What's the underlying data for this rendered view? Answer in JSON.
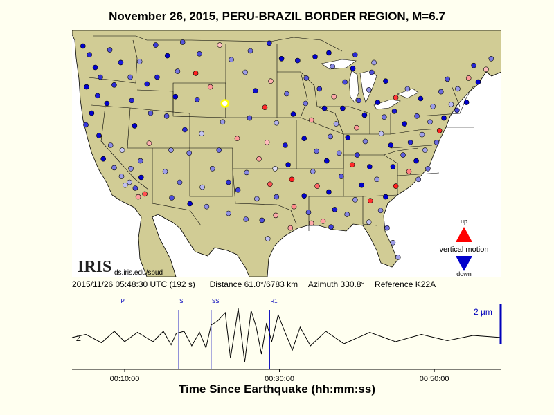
{
  "title": "November 26, 2015, PERU-BRAZIL BORDER REGION, M=6.7",
  "iris": {
    "logo": "IRIS",
    "url": "ds.iris.edu/spud"
  },
  "legend": {
    "up": "up",
    "motion": "vertical motion",
    "down": "down",
    "up_color": "#ff0000",
    "down_color": "#0000cc"
  },
  "info": {
    "time": "2015/11/26 05:48:30 UTC (192 s)",
    "distance_label": "Distance",
    "distance": "61.0°/6783 km",
    "azimuth_label": "Azimuth",
    "azimuth": "330.8°",
    "reference_label": "Reference",
    "reference": "K22A"
  },
  "colors": {
    "land": "#d1cc95",
    "water": "#ffffff",
    "border": "#000000",
    "trace": "#000000",
    "phase": "#0000bb"
  },
  "chart_data": {
    "type": "line",
    "title": "",
    "xlabel": "Time Since Earthquake (hh:mm:ss)",
    "ylabel": "",
    "channel": "Z",
    "scale_label": "2 µm",
    "xlim_seconds": [
      192,
      3520
    ],
    "x_ticks": [
      {
        "t": 600,
        "label": "00:10:00"
      },
      {
        "t": 1800,
        "label": "00:30:00"
      },
      {
        "t": 3000,
        "label": "00:50:00"
      }
    ],
    "phases": [
      {
        "name": "P",
        "t": 565
      },
      {
        "name": "S",
        "t": 1019
      },
      {
        "name": "SS",
        "t": 1270
      },
      {
        "name": "R1",
        "t": 1724
      }
    ],
    "trace_amplitude": {
      "t": [
        192,
        300,
        420,
        520,
        600,
        700,
        820,
        900,
        960,
        1000,
        1060,
        1120,
        1180,
        1230,
        1270,
        1320,
        1380,
        1420,
        1480,
        1530,
        1580,
        1620,
        1660,
        1700,
        1740,
        1790,
        1840,
        1900,
        1960,
        2040,
        2160,
        2300,
        2500,
        2700,
        2900,
        3100,
        3300,
        3520
      ],
      "y": [
        0.0,
        0.15,
        -0.25,
        0.3,
        -0.2,
        0.25,
        -0.2,
        0.3,
        -0.35,
        0.2,
        0.3,
        -0.4,
        0.25,
        -0.5,
        0.6,
        0.8,
        1.2,
        -1.0,
        1.4,
        -1.2,
        1.3,
        0.5,
        -0.8,
        0.7,
        -0.2,
        1.1,
        0.3,
        -0.6,
        0.5,
        -0.4,
        0.3,
        -0.3,
        0.25,
        -0.2,
        0.15,
        -0.15,
        0.1,
        0.0
      ]
    }
  },
  "stations": [
    {
      "lon": -124.0,
      "lat": 48.2,
      "c": "#0000cc"
    },
    {
      "lon": -123.1,
      "lat": 47.3,
      "c": "#2626d9"
    },
    {
      "lon": -122.3,
      "lat": 46.0,
      "c": "#0000cc"
    },
    {
      "lon": -121.6,
      "lat": 45.0,
      "c": "#3333cc"
    },
    {
      "lon": -123.5,
      "lat": 44.0,
      "c": "#0000cc"
    },
    {
      "lon": -122.0,
      "lat": 43.1,
      "c": "#1a1ad9"
    },
    {
      "lon": -120.3,
      "lat": 47.8,
      "c": "#5050d9"
    },
    {
      "lon": -118.8,
      "lat": 46.5,
      "c": "#1a1ae0"
    },
    {
      "lon": -117.5,
      "lat": 45.0,
      "c": "#6a6ae0"
    },
    {
      "lon": -119.7,
      "lat": 44.2,
      "c": "#2a2ad6"
    },
    {
      "lon": -120.7,
      "lat": 42.3,
      "c": "#0000cc"
    },
    {
      "lon": -122.8,
      "lat": 41.3,
      "c": "#0000cc"
    },
    {
      "lon": -123.6,
      "lat": 40.1,
      "c": "#3636d6"
    },
    {
      "lon": -121.8,
      "lat": 39.0,
      "c": "#0a0ad4"
    },
    {
      "lon": -120.2,
      "lat": 38.0,
      "c": "#8a8ae6"
    },
    {
      "lon": -121.2,
      "lat": 36.6,
      "c": "#0000cc"
    },
    {
      "lon": -119.7,
      "lat": 35.7,
      "c": "#7a7ae0"
    },
    {
      "lon": -118.7,
      "lat": 34.8,
      "c": "#9e9ee8"
    },
    {
      "lon": -117.6,
      "lat": 34.2,
      "c": "#b2b2ee"
    },
    {
      "lon": -116.8,
      "lat": 33.6,
      "c": "#4a4ad9"
    },
    {
      "lon": -118.2,
      "lat": 33.9,
      "c": "#c0c0f0"
    },
    {
      "lon": -116.0,
      "lat": 34.7,
      "c": "#0000cc"
    },
    {
      "lon": -115.5,
      "lat": 33.0,
      "c": "#ff5050"
    },
    {
      "lon": -116.4,
      "lat": 32.7,
      "c": "#ffa0a0"
    },
    {
      "lon": -117.4,
      "lat": 35.6,
      "c": "#9090e6"
    },
    {
      "lon": -116.1,
      "lat": 36.4,
      "c": "#6868dc"
    },
    {
      "lon": -118.6,
      "lat": 37.5,
      "c": "#c8c8f2"
    },
    {
      "lon": -114.9,
      "lat": 38.2,
      "c": "#ffb0b0"
    },
    {
      "lon": -116.9,
      "lat": 40.0,
      "c": "#0000cc"
    },
    {
      "lon": -114.7,
      "lat": 41.3,
      "c": "#5c5cdb"
    },
    {
      "lon": -117.3,
      "lat": 42.6,
      "c": "#2525d3"
    },
    {
      "lon": -115.2,
      "lat": 44.3,
      "c": "#1818d2"
    },
    {
      "lon": -116.2,
      "lat": 46.6,
      "c": "#9999e6"
    },
    {
      "lon": -114.0,
      "lat": 48.3,
      "c": "#3a3ad6"
    },
    {
      "lon": -112.4,
      "lat": 47.2,
      "c": "#0000cc"
    },
    {
      "lon": -110.3,
      "lat": 48.6,
      "c": "#5555da"
    },
    {
      "lon": -108.0,
      "lat": 47.4,
      "c": "#4a4ad8"
    },
    {
      "lon": -105.2,
      "lat": 48.3,
      "c": "#ffc0c0"
    },
    {
      "lon": -103.6,
      "lat": 46.8,
      "c": "#8a8ae3"
    },
    {
      "lon": -101.0,
      "lat": 47.7,
      "c": "#6e6edf"
    },
    {
      "lon": -98.4,
      "lat": 48.5,
      "c": "#1e1ed3"
    },
    {
      "lon": -96.7,
      "lat": 46.9,
      "c": "#0000cc"
    },
    {
      "lon": -111.0,
      "lat": 45.6,
      "c": "#7777e0"
    },
    {
      "lon": -113.8,
      "lat": 45.0,
      "c": "#1b1bd2"
    },
    {
      "lon": -108.5,
      "lat": 45.4,
      "c": "#ff2020"
    },
    {
      "lon": -106.5,
      "lat": 44.0,
      "c": "#ff9898"
    },
    {
      "lon": -108.3,
      "lat": 42.7,
      "c": "#3d3dd6"
    },
    {
      "lon": -104.5,
      "lat": 42.3,
      "c": "#ffff00"
    },
    {
      "lon": -111.3,
      "lat": 43.0,
      "c": "#0000cc"
    },
    {
      "lon": -112.5,
      "lat": 41.0,
      "c": "#5656da"
    },
    {
      "lon": -110.0,
      "lat": 39.6,
      "c": "#2828d3"
    },
    {
      "lon": -111.9,
      "lat": 37.5,
      "c": "#9595e4"
    },
    {
      "lon": -109.4,
      "lat": 37.2,
      "c": "#7c7ce1"
    },
    {
      "lon": -112.7,
      "lat": 35.3,
      "c": "#a0a0e8"
    },
    {
      "lon": -110.7,
      "lat": 34.2,
      "c": "#6c6cdc"
    },
    {
      "lon": -111.8,
      "lat": 32.6,
      "c": "#4d4dd7"
    },
    {
      "lon": -109.3,
      "lat": 32.0,
      "c": "#0000cc"
    },
    {
      "lon": -107.6,
      "lat": 33.7,
      "c": "#b5b5ee"
    },
    {
      "lon": -106.2,
      "lat": 35.6,
      "c": "#8888e3"
    },
    {
      "lon": -104.0,
      "lat": 34.2,
      "c": "#3030d4"
    },
    {
      "lon": -107.0,
      "lat": 31.7,
      "c": "#9090e4"
    },
    {
      "lon": -105.3,
      "lat": 37.5,
      "c": "#7070df"
    },
    {
      "lon": -107.7,
      "lat": 39.2,
      "c": "#c4c4f0"
    },
    {
      "lon": -104.8,
      "lat": 40.4,
      "c": "#9a9ae6"
    },
    {
      "lon": -102.8,
      "lat": 38.7,
      "c": "#ff9999"
    },
    {
      "lon": -101.1,
      "lat": 40.8,
      "c": "#5a5ad9"
    },
    {
      "lon": -99.0,
      "lat": 41.9,
      "c": "#ff2a2a"
    },
    {
      "lon": -100.3,
      "lat": 43.6,
      "c": "#0c0cd0"
    },
    {
      "lon": -101.7,
      "lat": 45.5,
      "c": "#9c9ce6"
    },
    {
      "lon": -98.2,
      "lat": 44.6,
      "c": "#ffb0b0"
    },
    {
      "lon": -96.0,
      "lat": 43.3,
      "c": "#7070df"
    },
    {
      "lon": -97.4,
      "lat": 40.3,
      "c": "#b4b4ee"
    },
    {
      "lon": -95.1,
      "lat": 41.2,
      "c": "#0000cc"
    },
    {
      "lon": -98.7,
      "lat": 38.3,
      "c": "#ffbbbb"
    },
    {
      "lon": -96.2,
      "lat": 38.0,
      "c": "#1212d1"
    },
    {
      "lon": -99.8,
      "lat": 36.6,
      "c": "#ffa0a0"
    },
    {
      "lon": -97.6,
      "lat": 35.6,
      "c": "#e0e0f8"
    },
    {
      "lon": -95.8,
      "lat": 36.0,
      "c": "#0000cc"
    },
    {
      "lon": -95.3,
      "lat": 34.5,
      "c": "#ff2020"
    },
    {
      "lon": -98.3,
      "lat": 34.0,
      "c": "#ff5555"
    },
    {
      "lon": -101.5,
      "lat": 35.2,
      "c": "#8b8be3"
    },
    {
      "lon": -102.7,
      "lat": 33.4,
      "c": "#4242d7"
    },
    {
      "lon": -100.1,
      "lat": 32.5,
      "c": "#9b9be6"
    },
    {
      "lon": -97.4,
      "lat": 32.7,
      "c": "#6363dd"
    },
    {
      "lon": -104.0,
      "lat": 31.0,
      "c": "#9191e4"
    },
    {
      "lon": -101.6,
      "lat": 30.4,
      "c": "#7b7be0"
    },
    {
      "lon": -99.4,
      "lat": 30.3,
      "c": "#5050d9"
    },
    {
      "lon": -97.5,
      "lat": 30.8,
      "c": "#ffa8a8"
    },
    {
      "lon": -95.0,
      "lat": 31.7,
      "c": "#ff8a8a"
    },
    {
      "lon": -95.5,
      "lat": 29.5,
      "c": "#ffa0a0"
    },
    {
      "lon": -98.6,
      "lat": 28.4,
      "c": "#bfbff0"
    },
    {
      "lon": -93.6,
      "lat": 32.8,
      "c": "#0000cc"
    },
    {
      "lon": -93.0,
      "lat": 31.1,
      "c": "#5e5edb"
    },
    {
      "lon": -91.8,
      "lat": 33.8,
      "c": "#ff6666"
    },
    {
      "lon": -92.4,
      "lat": 35.3,
      "c": "#9393e5"
    },
    {
      "lon": -90.5,
      "lat": 36.4,
      "c": "#0000cc"
    },
    {
      "lon": -91.9,
      "lat": 37.4,
      "c": "#6a6adc"
    },
    {
      "lon": -93.6,
      "lat": 38.7,
      "c": "#0000cc"
    },
    {
      "lon": -90.0,
      "lat": 38.9,
      "c": "#7878e0"
    },
    {
      "lon": -92.6,
      "lat": 40.6,
      "c": "#ffa0a0"
    },
    {
      "lon": -90.8,
      "lat": 41.8,
      "c": "#0000cc"
    },
    {
      "lon": -93.4,
      "lat": 42.3,
      "c": "#7474df"
    },
    {
      "lon": -91.5,
      "lat": 43.8,
      "c": "#3a3ad5"
    },
    {
      "lon": -93.3,
      "lat": 44.9,
      "c": "#5959da"
    },
    {
      "lon": -94.5,
      "lat": 46.7,
      "c": "#1313d0"
    },
    {
      "lon": -92.1,
      "lat": 47.1,
      "c": "#0000cc"
    },
    {
      "lon": -89.7,
      "lat": 46.1,
      "c": "#8a8ae4"
    },
    {
      "lon": -88.0,
      "lat": 44.5,
      "c": "#4747d8"
    },
    {
      "lon": -89.5,
      "lat": 43.0,
      "c": "#ffa8a8"
    },
    {
      "lon": -88.3,
      "lat": 41.8,
      "c": "#0000cc"
    },
    {
      "lon": -89.2,
      "lat": 40.2,
      "c": "#a5a5e9"
    },
    {
      "lon": -87.6,
      "lat": 38.8,
      "c": "#0000cc"
    },
    {
      "lon": -88.8,
      "lat": 37.2,
      "c": "#8080e2"
    },
    {
      "lon": -87.0,
      "lat": 36.0,
      "c": "#ff2a2a"
    },
    {
      "lon": -88.5,
      "lat": 34.8,
      "c": "#5959da"
    },
    {
      "lon": -90.2,
      "lat": 33.2,
      "c": "#0000cc"
    },
    {
      "lon": -89.4,
      "lat": 31.4,
      "c": "#1717d1"
    },
    {
      "lon": -91.0,
      "lat": 30.2,
      "c": "#ffa0a0"
    },
    {
      "lon": -89.9,
      "lat": 29.6,
      "c": "#3f3fd6"
    },
    {
      "lon": -92.6,
      "lat": 30.0,
      "c": "#ffaaaa"
    },
    {
      "lon": -87.7,
      "lat": 30.9,
      "c": "#8585e3"
    },
    {
      "lon": -86.6,
      "lat": 32.4,
      "c": "#9494e5"
    },
    {
      "lon": -85.7,
      "lat": 33.9,
      "c": "#0000cc"
    },
    {
      "lon": -84.5,
      "lat": 32.3,
      "c": "#ff3030"
    },
    {
      "lon": -83.1,
      "lat": 31.3,
      "c": "#8b8be4"
    },
    {
      "lon": -84.7,
      "lat": 30.1,
      "c": "#c0c0f0"
    },
    {
      "lon": -82.2,
      "lat": 29.5,
      "c": "#6f6fdf"
    },
    {
      "lon": -81.4,
      "lat": 28.0,
      "c": "#9d9de7"
    },
    {
      "lon": -80.7,
      "lat": 26.5,
      "c": "#a3a3e8"
    },
    {
      "lon": -82.4,
      "lat": 32.7,
      "c": "#0000cc"
    },
    {
      "lon": -81.0,
      "lat": 33.8,
      "c": "#ff2020"
    },
    {
      "lon": -83.6,
      "lat": 34.5,
      "c": "#9a9ae6"
    },
    {
      "lon": -84.6,
      "lat": 35.8,
      "c": "#0000cc"
    },
    {
      "lon": -86.3,
      "lat": 37.0,
      "c": "#3838d5"
    },
    {
      "lon": -85.2,
      "lat": 38.4,
      "c": "#8383e2"
    },
    {
      "lon": -86.4,
      "lat": 39.8,
      "c": "#ff9999"
    },
    {
      "lon": -85.3,
      "lat": 41.1,
      "c": "#0000cc"
    },
    {
      "lon": -86.1,
      "lat": 42.6,
      "c": "#4545d7"
    },
    {
      "lon": -84.7,
      "lat": 43.7,
      "c": "#9090e4"
    },
    {
      "lon": -83.5,
      "lat": 42.4,
      "c": "#0000cc"
    },
    {
      "lon": -82.6,
      "lat": 40.9,
      "c": "#7777e0"
    },
    {
      "lon": -81.2,
      "lat": 41.5,
      "c": "#1818d1"
    },
    {
      "lon": -83.0,
      "lat": 39.2,
      "c": "#c0c0f0"
    },
    {
      "lon": -81.7,
      "lat": 38.0,
      "c": "#0000cc"
    },
    {
      "lon": -80.0,
      "lat": 37.0,
      "c": "#5c5cdb"
    },
    {
      "lon": -81.4,
      "lat": 35.8,
      "c": "#0000cc"
    },
    {
      "lon": -79.2,
      "lat": 35.3,
      "c": "#ff8080"
    },
    {
      "lon": -77.9,
      "lat": 34.5,
      "c": "#8c8ce4"
    },
    {
      "lon": -78.2,
      "lat": 36.4,
      "c": "#0000cc"
    },
    {
      "lon": -77.0,
      "lat": 37.5,
      "c": "#a3a3e8"
    },
    {
      "lon": -76.6,
      "lat": 35.6,
      "c": "#7070df"
    },
    {
      "lon": -79.0,
      "lat": 38.3,
      "c": "#2d2dd4"
    },
    {
      "lon": -77.4,
      "lat": 39.1,
      "c": "#9f9fe7"
    },
    {
      "lon": -79.8,
      "lat": 40.2,
      "c": "#0000cc"
    },
    {
      "lon": -78.1,
      "lat": 41.0,
      "c": "#5f5fdb"
    },
    {
      "lon": -76.3,
      "lat": 40.4,
      "c": "#8787e3"
    },
    {
      "lon": -75.0,
      "lat": 39.5,
      "c": "#ff2020"
    },
    {
      "lon": -74.4,
      "lat": 40.8,
      "c": "#0000cc"
    },
    {
      "lon": -75.9,
      "lat": 42.0,
      "c": "#9b9be6"
    },
    {
      "lon": -77.6,
      "lat": 42.8,
      "c": "#0000cc"
    },
    {
      "lon": -74.8,
      "lat": 43.5,
      "c": "#6a6adc"
    },
    {
      "lon": -73.4,
      "lat": 42.2,
      "c": "#b8b8ef"
    },
    {
      "lon": -72.6,
      "lat": 41.6,
      "c": "#4646d7"
    },
    {
      "lon": -71.3,
      "lat": 42.4,
      "c": "#0000cc"
    },
    {
      "lon": -72.5,
      "lat": 43.8,
      "c": "#9898e6"
    },
    {
      "lon": -71.0,
      "lat": 44.9,
      "c": "#ff9999"
    },
    {
      "lon": -69.7,
      "lat": 44.5,
      "c": "#0000cc"
    },
    {
      "lon": -68.6,
      "lat": 45.8,
      "c": "#ffbbbb"
    },
    {
      "lon": -67.9,
      "lat": 46.9,
      "c": "#7c7ce1"
    },
    {
      "lon": -70.3,
      "lat": 46.2,
      "c": "#2424d3"
    },
    {
      "lon": -73.9,
      "lat": 44.8,
      "c": "#5252d9"
    },
    {
      "lon": -81.0,
      "lat": 42.9,
      "c": "#ff3838"
    },
    {
      "lon": -79.4,
      "lat": 43.8,
      "c": "#8d8de4"
    },
    {
      "lon": -82.4,
      "lat": 44.6,
      "c": "#0000cc"
    },
    {
      "lon": -84.3,
      "lat": 45.5,
      "c": "#4f4fd8"
    },
    {
      "lon": -86.9,
      "lat": 45.9,
      "c": "#0000cc"
    },
    {
      "lon": -84.0,
      "lat": 46.5,
      "c": "#9e9ee7"
    },
    {
      "lon": -86.6,
      "lat": 47.3,
      "c": "#2a2ad4"
    },
    {
      "lon": -90.2,
      "lat": 47.5,
      "c": "#0000cc"
    },
    {
      "lon": -75.4,
      "lat": 38.3,
      "c": "#6a6adc"
    }
  ]
}
